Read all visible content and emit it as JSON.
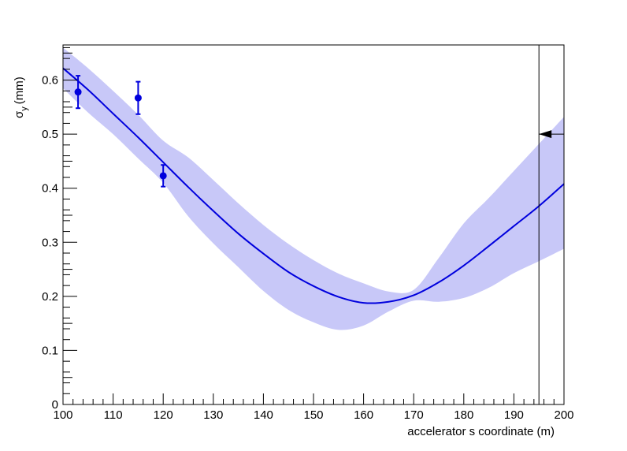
{
  "chart_data": {
    "type": "line",
    "xlabel": "accelerator s coordinate (m)",
    "ylabel": {
      "symbol": "σ",
      "subscript": "y",
      "unit": "(mm)"
    },
    "xlim": [
      100,
      200
    ],
    "ylim": [
      0,
      0.665
    ],
    "x_major_ticks": [
      100,
      110,
      120,
      130,
      140,
      150,
      160,
      170,
      180,
      190,
      200
    ],
    "x_tick_labels": [
      "100",
      "110",
      "120",
      "130",
      "140",
      "150",
      "160",
      "170",
      "180",
      "190",
      "200"
    ],
    "y_major_ticks": [
      0,
      0.1,
      0.2,
      0.3,
      0.4,
      0.5,
      0.6
    ],
    "y_tick_labels": [
      "0",
      "0.1",
      "0.2",
      "0.3",
      "0.4",
      "0.5",
      "0.6"
    ],
    "grid": false,
    "colors": {
      "fit_line": "#0000dd",
      "band": "#c8c8f8",
      "points": "#0000dd",
      "marker_line": "#000000"
    },
    "fit_curve": {
      "x": [
        100,
        105,
        110,
        115,
        120,
        125,
        130,
        135,
        140,
        145,
        150,
        155,
        160,
        165,
        170,
        175,
        180,
        185,
        190,
        195,
        200
      ],
      "y": [
        0.622,
        0.582,
        0.538,
        0.494,
        0.448,
        0.402,
        0.358,
        0.316,
        0.279,
        0.245,
        0.219,
        0.199,
        0.188,
        0.19,
        0.202,
        0.226,
        0.257,
        0.293,
        0.33,
        0.367,
        0.408
      ]
    },
    "error_band": {
      "x": [
        100,
        105,
        110,
        115,
        120,
        125,
        130,
        135,
        140,
        145,
        150,
        155,
        160,
        165,
        170,
        175,
        180,
        185,
        190,
        195,
        200
      ],
      "upper": [
        0.66,
        0.622,
        0.58,
        0.536,
        0.488,
        0.457,
        0.415,
        0.372,
        0.332,
        0.297,
        0.267,
        0.242,
        0.224,
        0.209,
        0.212,
        0.271,
        0.335,
        0.382,
        0.432,
        0.482,
        0.532
      ],
      "lower": [
        0.585,
        0.54,
        0.5,
        0.455,
        0.41,
        0.348,
        0.298,
        0.254,
        0.21,
        0.175,
        0.152,
        0.138,
        0.146,
        0.172,
        0.192,
        0.19,
        0.197,
        0.216,
        0.243,
        0.265,
        0.288
      ]
    },
    "data_points": [
      {
        "x": 103,
        "y": 0.578,
        "err": 0.03
      },
      {
        "x": 115,
        "y": 0.567,
        "err": 0.03
      },
      {
        "x": 120,
        "y": 0.423,
        "err": 0.02
      }
    ],
    "vertical_marker": {
      "x": 195
    },
    "target_arrow": {
      "y": 0.5
    }
  }
}
